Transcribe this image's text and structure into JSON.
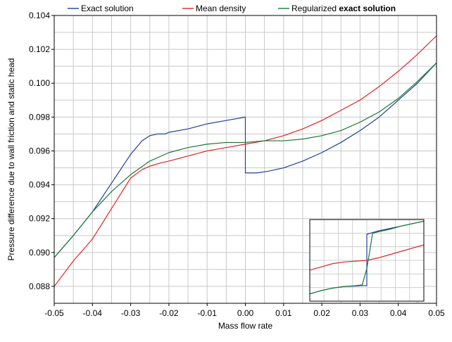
{
  "chart_data": [
    {
      "type": "line",
      "xlabel": "Mass flow rate",
      "ylabel": "Pressure difference due to wall friction and static head",
      "xlim": [
        -0.05,
        0.05
      ],
      "ylim": [
        0.087,
        0.104
      ],
      "x_ticks": [
        "-0.05",
        "-0.04",
        "-0.03",
        "-0.02",
        "-0.01",
        "0.00",
        "0.01",
        "0.02",
        "0.03",
        "0.04",
        "0.05"
      ],
      "y_ticks": [
        "0.088",
        "0.090",
        "0.092",
        "0.094",
        "0.096",
        "0.098",
        "0.100",
        "0.102",
        "0.104"
      ],
      "grid": true,
      "legend_position": "top",
      "legend": {
        "items": [
          {
            "label": "Exact solution",
            "color": "#1f3f9a"
          },
          {
            "label": "Mean density",
            "color": "#e32222"
          },
          {
            "label_plain": "Regularized ",
            "label_bold": "exact solution",
            "color": "#1a7a34"
          }
        ]
      },
      "series": [
        {
          "name": "Exact solution",
          "color": "#1f3f9a",
          "x": [
            -0.05,
            -0.045,
            -0.04,
            -0.035,
            -0.03,
            -0.027,
            -0.025,
            -0.023,
            -0.021,
            -0.02,
            -0.015,
            -0.01,
            -0.005,
            0.0,
            0.0,
            0.003,
            0.006,
            0.008,
            0.01,
            0.015,
            0.02,
            0.025,
            0.03,
            0.035,
            0.04,
            0.045,
            0.05
          ],
          "y": [
            0.0897,
            0.091,
            0.0924,
            0.0941,
            0.0958,
            0.0966,
            0.0969,
            0.097,
            0.097,
            0.0971,
            0.0973,
            0.0976,
            0.0978,
            0.098,
            0.0947,
            0.0947,
            0.0948,
            0.0949,
            0.095,
            0.0954,
            0.0959,
            0.0965,
            0.0972,
            0.098,
            0.099,
            0.1,
            0.1012
          ]
        },
        {
          "name": "Mean density",
          "color": "#e32222",
          "x": [
            -0.05,
            -0.045,
            -0.04,
            -0.035,
            -0.03,
            -0.027,
            -0.025,
            -0.022,
            -0.02,
            -0.015,
            -0.01,
            -0.005,
            0.0,
            0.005,
            0.01,
            0.015,
            0.02,
            0.025,
            0.03,
            0.035,
            0.04,
            0.045,
            0.05
          ],
          "y": [
            0.088,
            0.0895,
            0.0908,
            0.0926,
            0.0944,
            0.0949,
            0.0951,
            0.0953,
            0.0954,
            0.0957,
            0.096,
            0.0962,
            0.0964,
            0.0966,
            0.0969,
            0.0973,
            0.0978,
            0.0984,
            0.099,
            0.0998,
            0.1007,
            0.1017,
            0.1028
          ]
        },
        {
          "name": "Regularized exact solution",
          "color": "#1a7a34",
          "x": [
            -0.05,
            -0.045,
            -0.04,
            -0.035,
            -0.03,
            -0.025,
            -0.02,
            -0.015,
            -0.01,
            -0.005,
            0.0,
            0.005,
            0.01,
            0.015,
            0.02,
            0.025,
            0.03,
            0.035,
            0.04,
            0.045,
            0.05
          ],
          "y": [
            0.0897,
            0.091,
            0.0924,
            0.0936,
            0.0946,
            0.0954,
            0.0959,
            0.0962,
            0.0964,
            0.0965,
            0.0965,
            0.0966,
            0.0966,
            0.0967,
            0.0969,
            0.0972,
            0.0977,
            0.0983,
            0.0991,
            0.1001,
            0.1012
          ]
        }
      ]
    },
    {
      "type": "line",
      "role": "inset",
      "xlim": [
        0,
        1
      ],
      "ylim": [
        0,
        1
      ],
      "grid": true,
      "series": [
        {
          "name": "Exact solution",
          "color": "#1f3f9a",
          "x": [
            0.0,
            0.1,
            0.2,
            0.3,
            0.4,
            0.45,
            0.48,
            0.5,
            0.5,
            0.55,
            0.6,
            0.7,
            0.8,
            0.9,
            1.0
          ],
          "y": [
            0.09,
            0.13,
            0.16,
            0.18,
            0.185,
            0.19,
            0.19,
            0.19,
            0.82,
            0.84,
            0.86,
            0.89,
            0.92,
            0.95,
            0.98
          ]
        },
        {
          "name": "Mean density",
          "color": "#e32222",
          "x": [
            0.0,
            0.1,
            0.2,
            0.3,
            0.4,
            0.5,
            0.6,
            0.7,
            0.8,
            0.9,
            1.0
          ],
          "y": [
            0.38,
            0.42,
            0.46,
            0.48,
            0.49,
            0.5,
            0.53,
            0.57,
            0.61,
            0.65,
            0.69
          ]
        },
        {
          "name": "Regularized exact solution",
          "color": "#1a7a34",
          "x": [
            0.0,
            0.1,
            0.2,
            0.3,
            0.4,
            0.46,
            0.5,
            0.53,
            0.55,
            0.6,
            0.7,
            0.8,
            0.9,
            1.0
          ],
          "y": [
            0.09,
            0.13,
            0.16,
            0.18,
            0.19,
            0.2,
            0.4,
            0.65,
            0.83,
            0.85,
            0.88,
            0.92,
            0.95,
            0.98
          ]
        }
      ]
    }
  ]
}
